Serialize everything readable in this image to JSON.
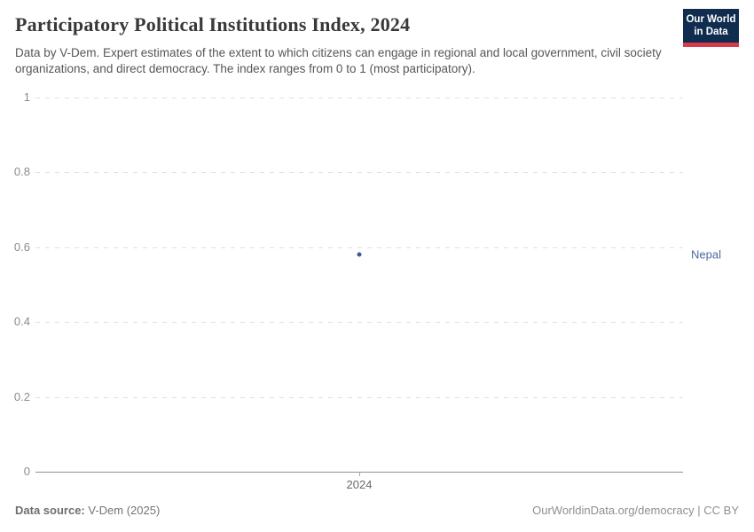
{
  "header": {
    "title": "Participatory Political Institutions Index, 2024",
    "subtitle": "Data by V-Dem. Expert estimates of the extent to which citizens can engage in regional and local government, civil society organizations, and direct democracy. The index ranges from 0 to 1 (most participatory).",
    "logo": {
      "line1": "Our World",
      "line2": "in Data",
      "bg_color": "#102d50",
      "bar_color": "#d73c4c"
    }
  },
  "chart_data": {
    "type": "scatter",
    "title": "Participatory Political Institutions Index, 2024",
    "xlabel": "",
    "ylabel": "",
    "ylim": [
      0,
      1
    ],
    "y_ticks": [
      0,
      0.2,
      0.4,
      0.6,
      0.8,
      1
    ],
    "x_ticks": [
      {
        "label": "2024",
        "fraction": 0.5
      }
    ],
    "grid": "horizontal-dashed",
    "legend_position": "right-of-plot",
    "series": [
      {
        "name": "Nepal",
        "marker_color": "#3e5c8f",
        "label_color": "#4c6a9c",
        "points": [
          {
            "x": 2024,
            "y": 0.58
          }
        ]
      }
    ]
  },
  "footer": {
    "source_label": "Data source:",
    "source_value": " V-Dem (2025)",
    "credit": "OurWorldinData.org/democracy | CC BY"
  }
}
